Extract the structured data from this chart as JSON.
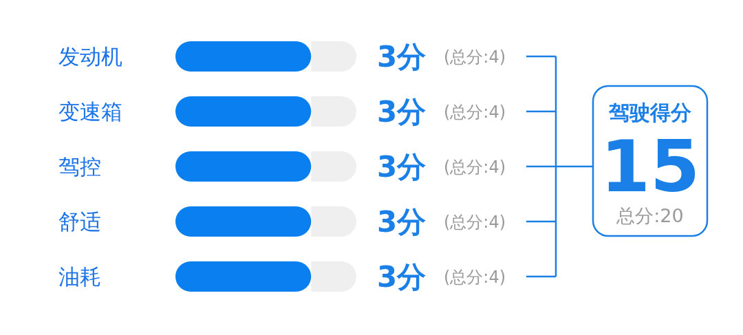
{
  "chart_data": {
    "type": "bar",
    "orientation": "horizontal",
    "categories": [
      "发动机",
      "变速箱",
      "驾控",
      "舒适",
      "油耗"
    ],
    "stacked": true,
    "series": [
      {
        "color": "#0a7ff0",
        "values": [
          3,
          3,
          3,
          3,
          3
        ],
        "value_labels": [
          "3分",
          "3分",
          "3分",
          "3分",
          "3分"
        ]
      },
      {
        "color": "#efefef",
        "values": [
          1,
          1,
          1,
          1,
          1
        ]
      }
    ],
    "xlim": [
      0,
      4
    ],
    "tick_labels": "y",
    "annotations": [
      "(总分:4)",
      "(总分:4)",
      "(总分:4)",
      "(总分:4)",
      "(总分:4)",
      "驾驶得分",
      "15",
      "总分:20"
    ]
  }
}
